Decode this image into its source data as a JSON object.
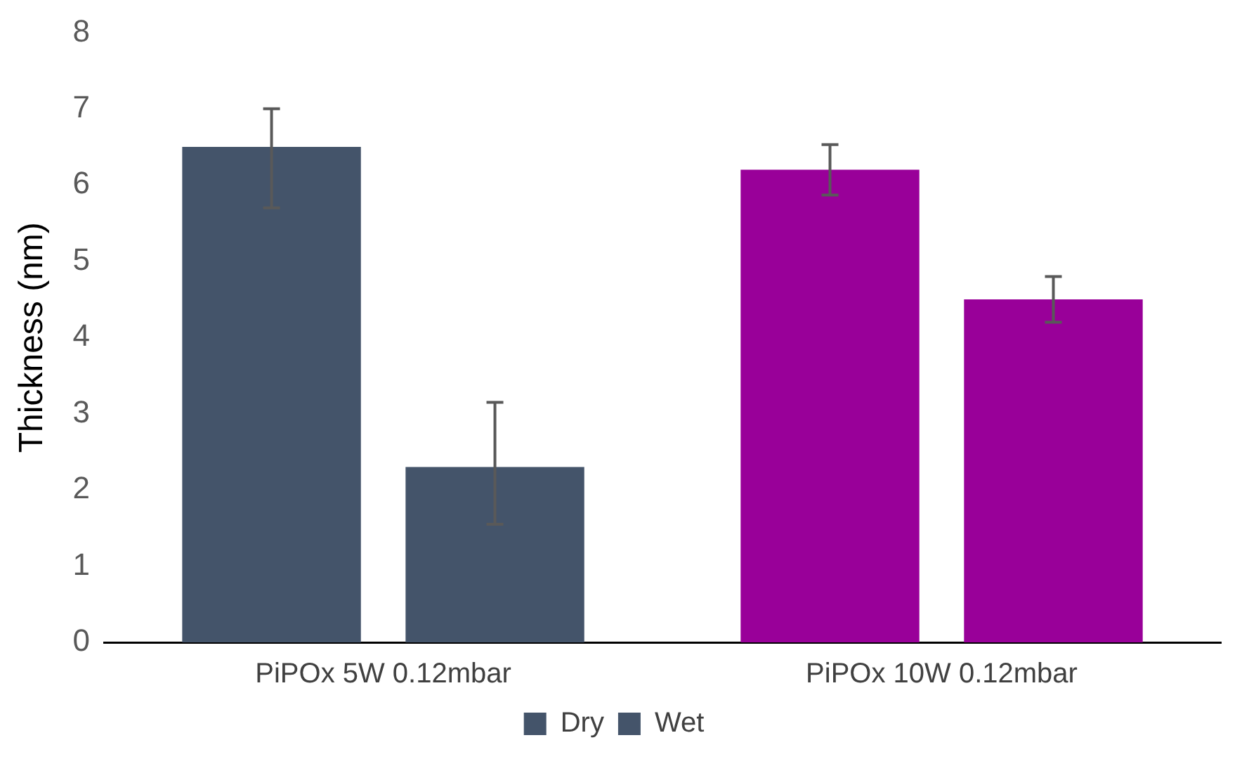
{
  "chart_data": {
    "type": "bar",
    "ylabel": "Thickness (nm)",
    "categories": [
      "PiPOx 5W 0.12mbar",
      "PiPOx 10W 0.12mbar"
    ],
    "series": [
      {
        "name": "Dry",
        "colors": [
          "#44546a",
          "#990099"
        ],
        "values": [
          6.5,
          6.2
        ],
        "errors": [
          [
            5.7,
            7.0
          ],
          [
            5.87,
            6.53
          ]
        ]
      },
      {
        "name": "Wet",
        "colors": [
          "#44546a",
          "#990099"
        ],
        "values": [
          2.3,
          4.5
        ],
        "errors": [
          [
            1.55,
            3.15
          ],
          [
            4.2,
            4.8
          ]
        ]
      }
    ],
    "ylim": [
      0,
      8
    ],
    "yticks": [
      0,
      1,
      2,
      3,
      4,
      5,
      6,
      7,
      8
    ],
    "grid": false,
    "legend": "bottom"
  }
}
